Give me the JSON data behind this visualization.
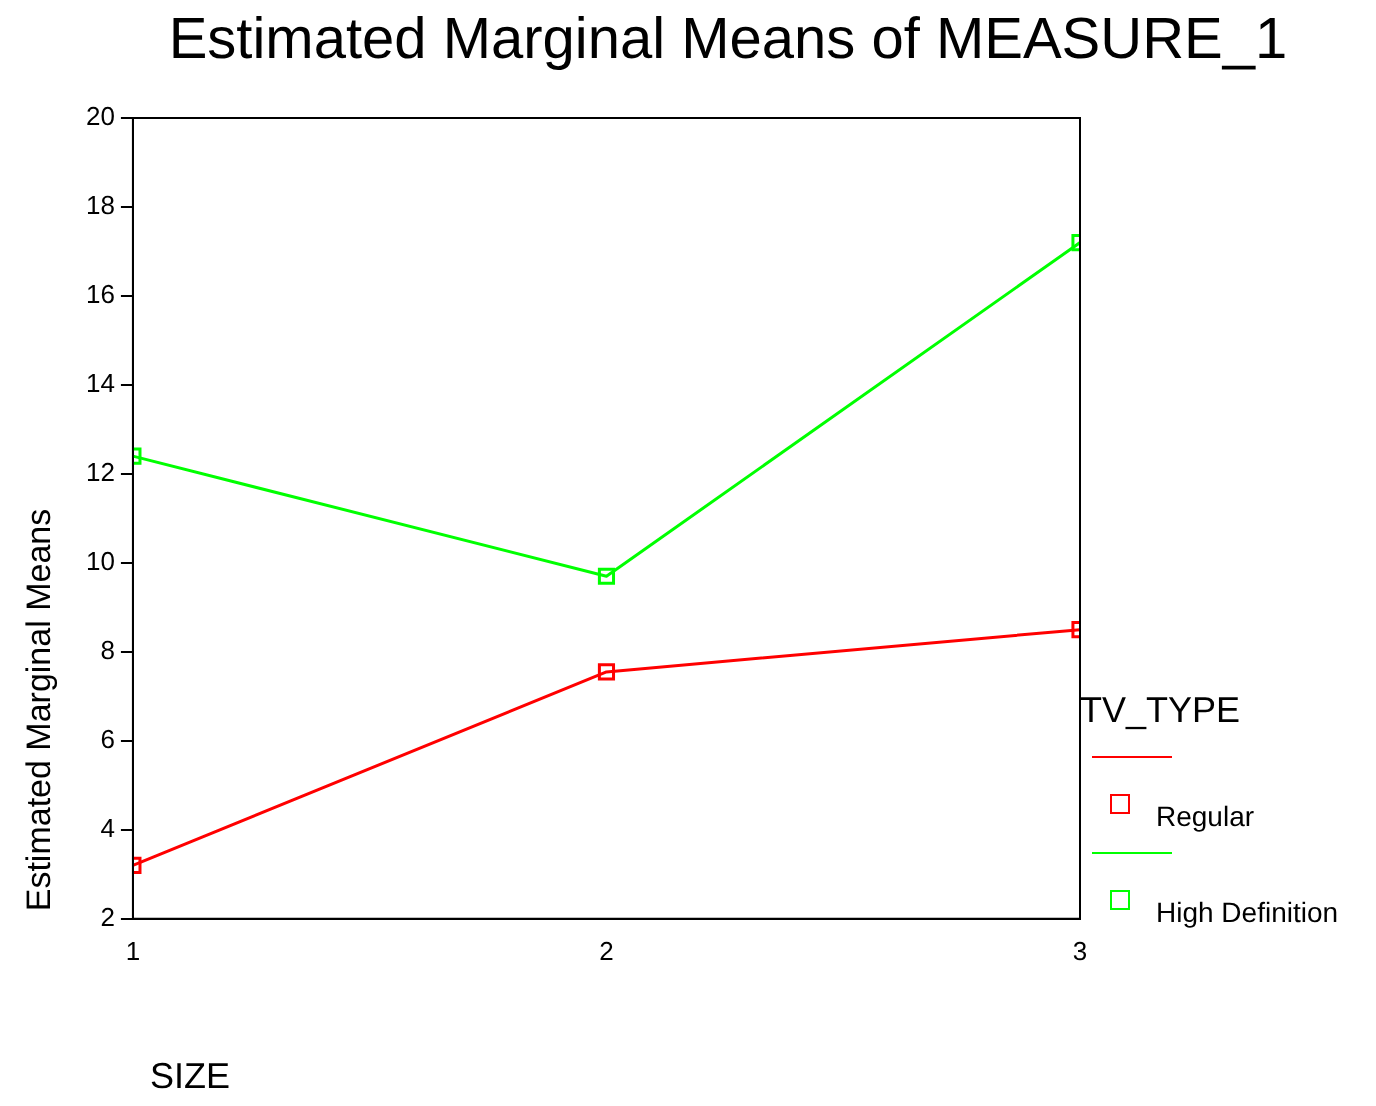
{
  "chart_data": {
    "type": "line",
    "title": "Estimated Marginal Means of MEASURE_1",
    "xlabel": "SIZE",
    "ylabel": "Estimated Marginal Means",
    "legend_title": "TV_TYPE",
    "legend": "right",
    "marker": "square",
    "line_style": "solid",
    "x": [
      1,
      2,
      3
    ],
    "xlim": [
      1,
      3
    ],
    "xticks": [
      1,
      2,
      3
    ],
    "ylim": [
      2,
      20
    ],
    "yticks": [
      2,
      4,
      6,
      8,
      10,
      12,
      14,
      16,
      18,
      20
    ],
    "series": [
      {
        "name": "Regular",
        "color": "#ff0000",
        "values": [
          3.2,
          7.55,
          8.5
        ]
      },
      {
        "name": "High Definition",
        "color": "#00ff00",
        "values": [
          12.4,
          9.7,
          17.2
        ]
      }
    ]
  }
}
